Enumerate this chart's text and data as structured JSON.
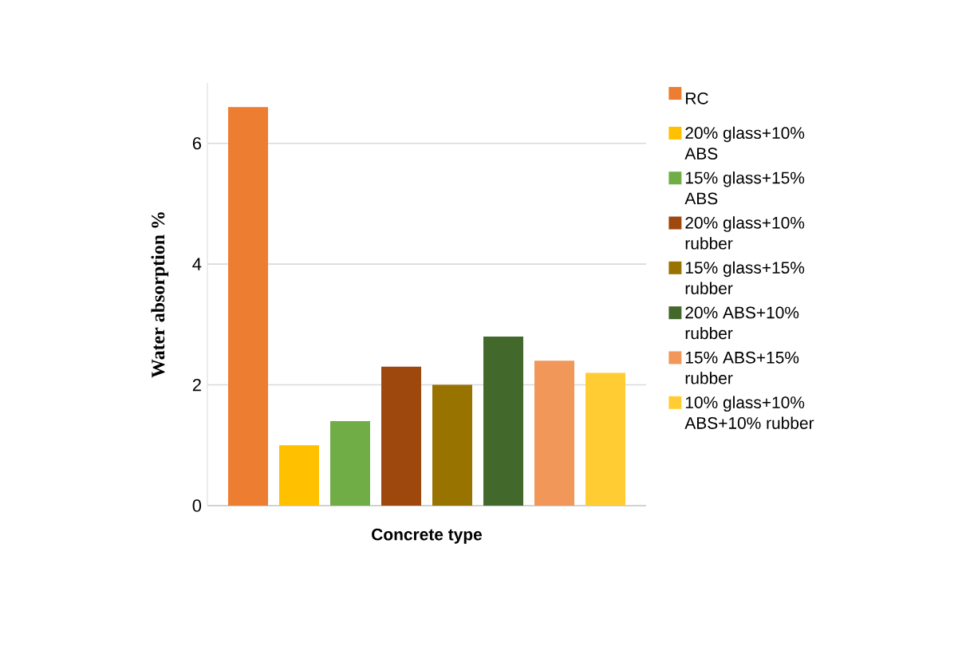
{
  "chart_data": {
    "type": "bar",
    "xlabel": "Concrete type",
    "ylabel": "Water absorption %",
    "categories": [
      null
    ],
    "series": [
      {
        "name": "RC",
        "color": "#ed7d31",
        "values": [
          6.6
        ]
      },
      {
        "name": "20% glass+10% ABS",
        "color": "#ffc000",
        "values": [
          1.0
        ]
      },
      {
        "name": "15% glass+15% ABS",
        "color": "#70ad47",
        "values": [
          1.4
        ]
      },
      {
        "name": "20% glass+10% rubber",
        "color": "#9e480e",
        "values": [
          2.3
        ]
      },
      {
        "name": "15% glass+15% rubber",
        "color": "#997300",
        "values": [
          2.0
        ]
      },
      {
        "name": "20% ABS+10% rubber",
        "color": "#43682b",
        "values": [
          2.8
        ]
      },
      {
        "name": "15% ABS+15% rubber",
        "color": "#f1975a",
        "values": [
          2.4
        ]
      },
      {
        "name": "10% glass+10% ABS+10% rubber",
        "color": "#ffcd33",
        "values": [
          2.2
        ]
      }
    ],
    "ylim": [
      0,
      7
    ],
    "yticks": [
      0,
      2,
      4,
      6
    ],
    "grid": "y",
    "legend": "right"
  }
}
